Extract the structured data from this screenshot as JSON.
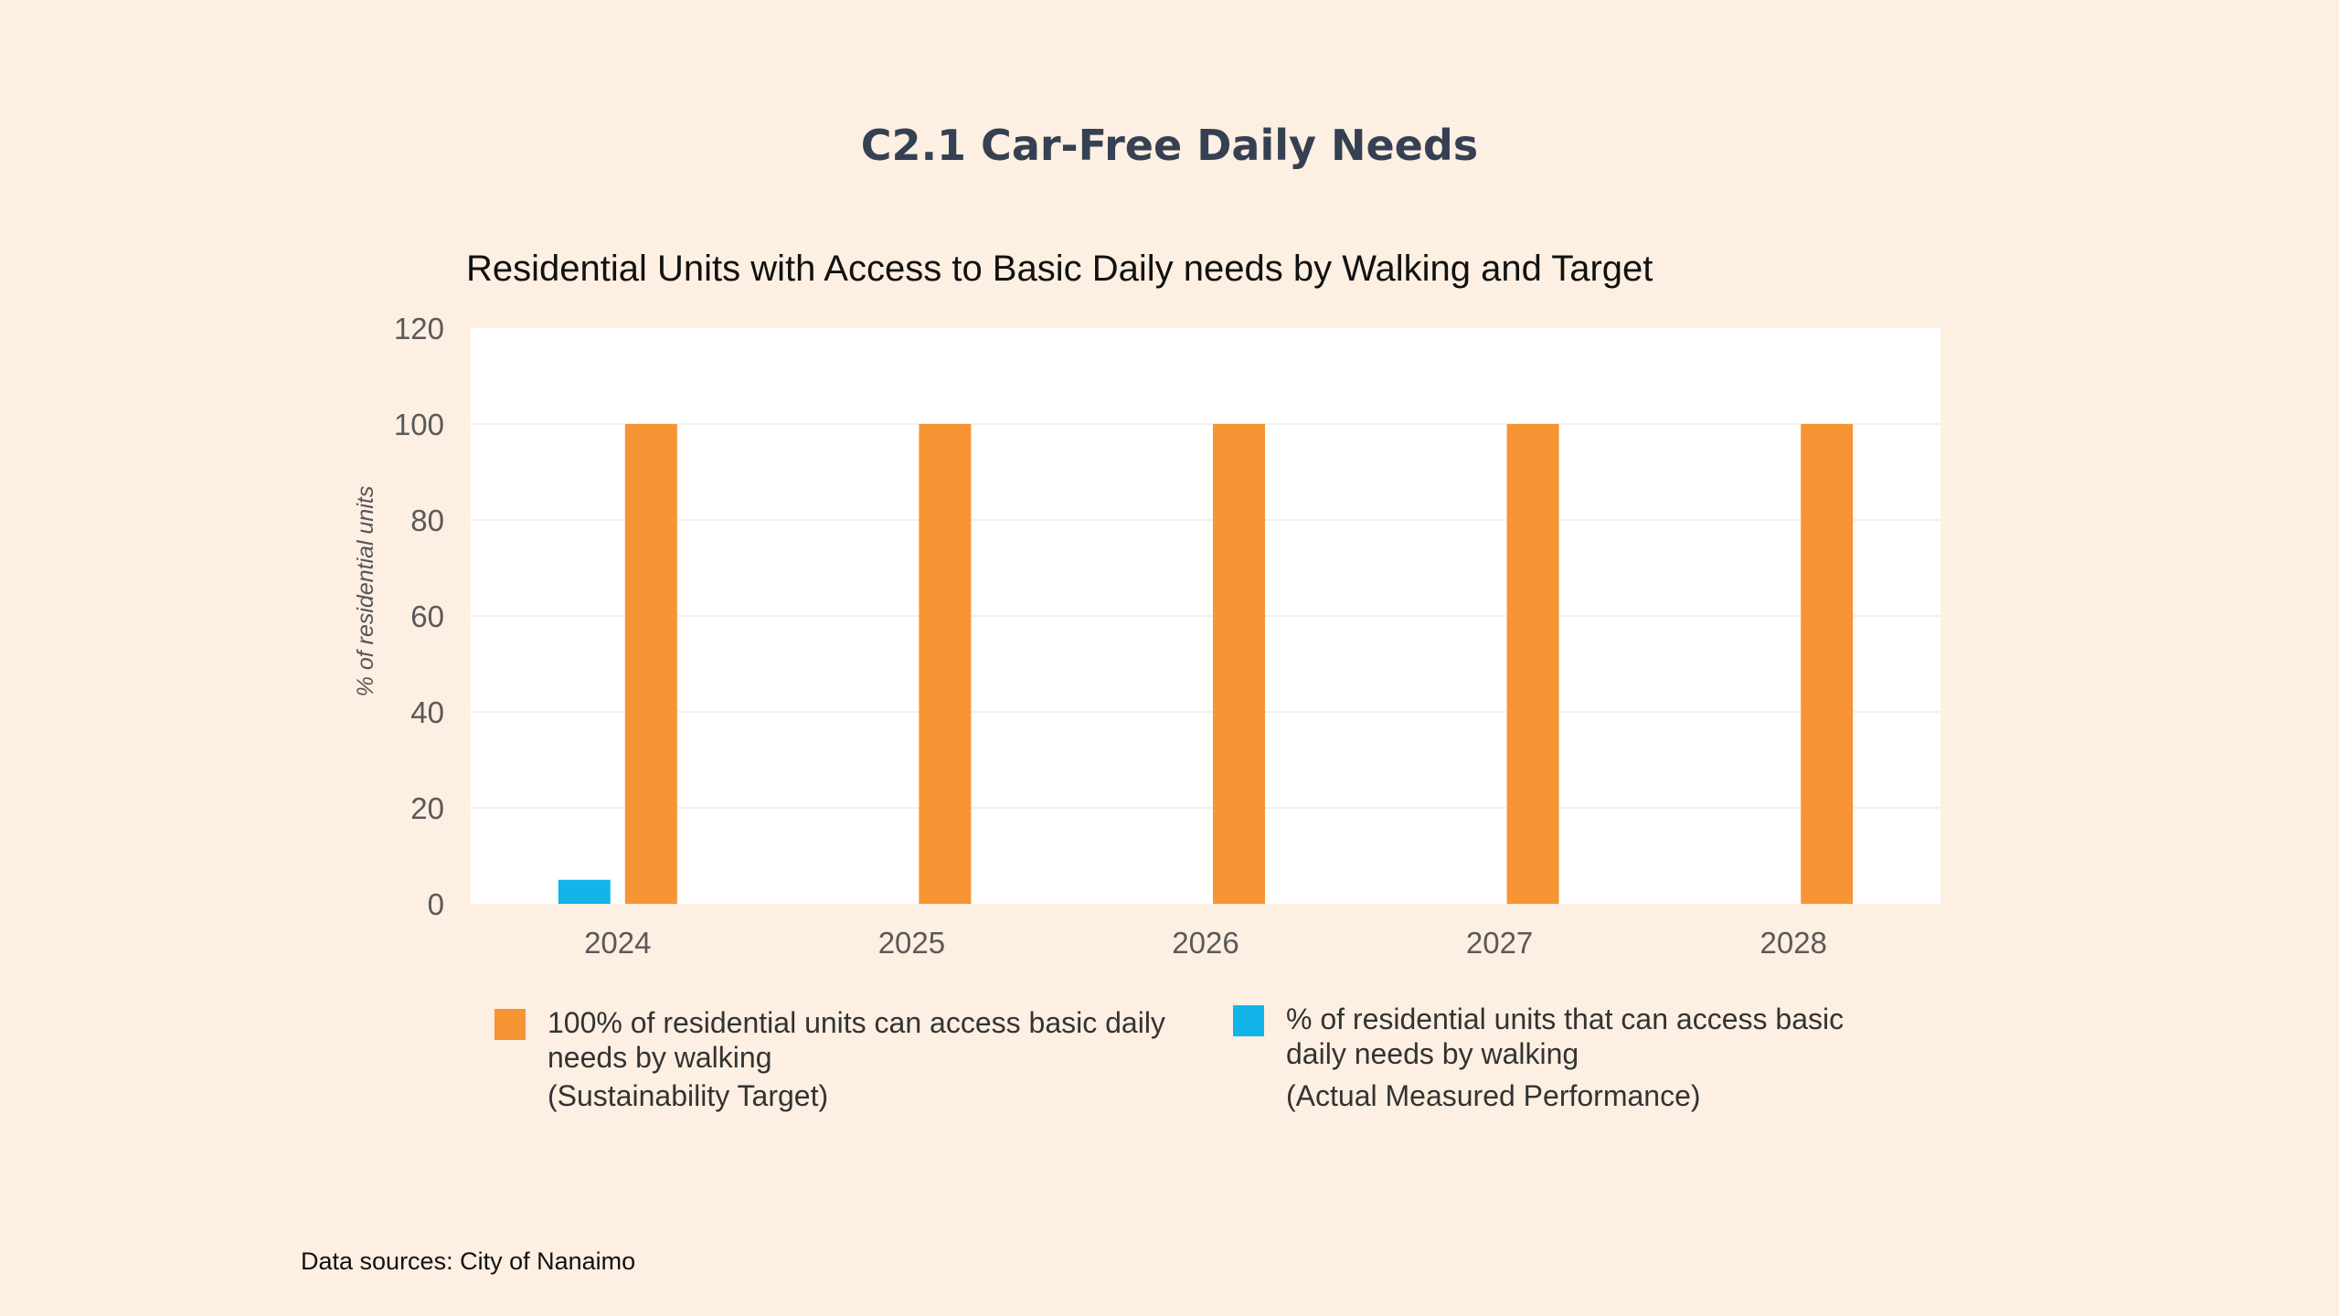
{
  "page": {
    "title": "C2.1 Car-Free Daily Needs",
    "source": "Data sources: City of Nanaimo"
  },
  "chart_data": {
    "type": "bar",
    "title": "Residential Units with Access to Basic Daily needs by Walking and Target",
    "xlabel": "",
    "ylabel": "% of residential units",
    "categories": [
      "2024",
      "2025",
      "2026",
      "2027",
      "2028"
    ],
    "ylim": [
      0,
      120
    ],
    "yticks": [
      0,
      20,
      40,
      60,
      80,
      100,
      120
    ],
    "grid": true,
    "legend_position": "bottom",
    "series": [
      {
        "name": "% of residential units that can access basic daily needs by walking",
        "note": "(Actual Measured Performance)",
        "color": "#12b4ea",
        "values": [
          5,
          null,
          null,
          null,
          null
        ]
      },
      {
        "name": "100% of residential units can access basic daily needs by walking",
        "note": "(Sustainability Target)",
        "color": "#f79433",
        "values": [
          100,
          100,
          100,
          100,
          100
        ]
      }
    ]
  },
  "legend": [
    {
      "line1": "100% of residential units can access basic daily",
      "line2": "needs by walking",
      "note": "(Sustainability Target)",
      "color": "#f79433"
    },
    {
      "line1": "% of residential units that can access basic",
      "line2": "daily needs by walking",
      "note": "(Actual Measured Performance)",
      "color": "#12b4ea"
    }
  ]
}
